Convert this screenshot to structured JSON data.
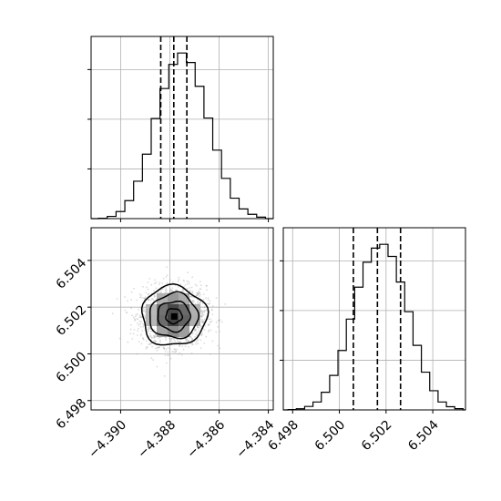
{
  "chart_data": {
    "type": "corner",
    "title": "",
    "params": [
      "",
      ""
    ],
    "colors": {
      "frame": "#000000",
      "grid": "#b0b0b0",
      "scatter": "#9a9a9a",
      "hist": "#000000"
    },
    "hist_x": {
      "xlim": [
        -4.3912,
        -4.3838
      ],
      "bins_lo": -4.3909,
      "bin_width": 0.000357,
      "counts": [
        3,
        18,
        57,
        145,
        302,
        520,
        808,
        1050,
        1245,
        1337,
        1260,
        1068,
        812,
        553,
        325,
        165,
        78,
        35,
        12
      ],
      "quantiles": [
        -4.38837,
        -4.38784,
        -4.38731
      ],
      "xticks": [
        -4.39,
        -4.388,
        -4.386,
        -4.384
      ]
    },
    "hist_y": {
      "xlim": [
        6.4976,
        6.5054
      ],
      "bins_lo": 6.4978,
      "bin_width": 0.000357,
      "counts": [
        3,
        9,
        27,
        62,
        138,
        270,
        465,
        710,
        960,
        1155,
        1265,
        1295,
        1200,
        1000,
        768,
        505,
        295,
        150,
        62,
        25,
        10
      ],
      "quantiles": [
        6.5006,
        6.50163,
        6.50262
      ],
      "xticks": [
        6.498,
        6.5,
        6.502,
        6.504
      ]
    },
    "joint": {
      "xlim": [
        -4.3912,
        -4.3838
      ],
      "ylim": [
        6.4976,
        6.5054
      ],
      "xticks": [
        -4.39,
        -4.388,
        -4.386,
        -4.384
      ],
      "yticks": [
        6.498,
        6.5,
        6.502,
        6.504
      ],
      "mean": [
        -4.38784,
        6.50162
      ],
      "std": [
        0.00066,
        0.00064
      ],
      "correlation": 0.0
    }
  }
}
